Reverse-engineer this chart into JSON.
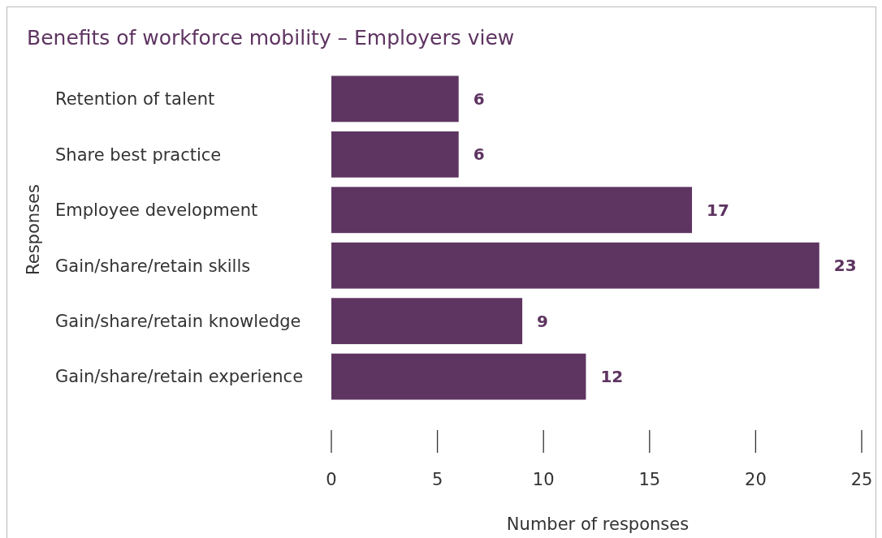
{
  "chart_data": {
    "type": "bar",
    "title": "Benefits of workforce mobility – Employers view",
    "xlabel": "Number of responses",
    "ylabel": "Responses",
    "orientation": "horizontal",
    "categories": [
      "Retention of talent",
      "Share best practice",
      "Employee development",
      "Gain/share/retain skills",
      "Gain/share/retain knowledge",
      "Gain/share/retain experience"
    ],
    "values": [
      6,
      6,
      17,
      23,
      9,
      12
    ],
    "color": "#5e3461",
    "data_labels": true,
    "xlim": [
      0,
      25
    ],
    "xticks": [
      0,
      5,
      10,
      15,
      20,
      25
    ],
    "grid": false
  }
}
